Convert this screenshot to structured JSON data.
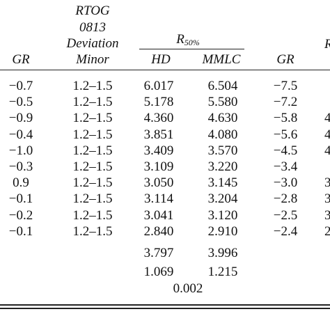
{
  "header": {
    "rtog_line1": "RTOG",
    "rtog_line2": "0813",
    "rtog_line3": "Deviation",
    "rtog_line4": "Minor",
    "gr_left": "GR",
    "r50_main": "R",
    "r50_sub": "50%",
    "hd": "HD",
    "mmlc": "MMLC",
    "gr_right": "GR",
    "right_cut_letter": "R"
  },
  "rows": [
    {
      "gr": "−0.7",
      "dev": "1.2–1.5",
      "hd": "6.017",
      "mmlc": "6.504",
      "gr2": "−7.5",
      "cut": ""
    },
    {
      "gr": "−0.5",
      "dev": "1.2–1.5",
      "hd": "5.178",
      "mmlc": "5.580",
      "gr2": "−7.2",
      "cut": ""
    },
    {
      "gr": "−0.9",
      "dev": "1.2–1.5",
      "hd": "4.360",
      "mmlc": "4.630",
      "gr2": "−5.8",
      "cut": "4"
    },
    {
      "gr": "−0.4",
      "dev": "1.2–1.5",
      "hd": "3.851",
      "mmlc": "4.080",
      "gr2": "−5.6",
      "cut": "4"
    },
    {
      "gr": "−1.0",
      "dev": "1.2–1.5",
      "hd": "3.409",
      "mmlc": "3.570",
      "gr2": "−4.5",
      "cut": "4"
    },
    {
      "gr": "−0.3",
      "dev": "1.2–1.5",
      "hd": "3.109",
      "mmlc": "3.220",
      "gr2": "−3.4",
      "cut": ""
    },
    {
      "gr": "0.9",
      "dev": "1.2–1.5",
      "hd": "3.050",
      "mmlc": "3.145",
      "gr2": "−3.0",
      "cut": "3"
    },
    {
      "gr": "−0.1",
      "dev": "1.2–1.5",
      "hd": "3.114",
      "mmlc": "3.204",
      "gr2": "−2.8",
      "cut": "3"
    },
    {
      "gr": "−0.2",
      "dev": "1.2–1.5",
      "hd": "3.041",
      "mmlc": "3.120",
      "gr2": "−2.5",
      "cut": "3"
    },
    {
      "gr": "−0.1",
      "dev": "1.2–1.5",
      "hd": "2.840",
      "mmlc": "2.910",
      "gr2": "−2.4",
      "cut": "2"
    }
  ],
  "summary": {
    "mean_hd": "3.797",
    "mean_mmlc": "3.996",
    "sd_hd": "1.069",
    "sd_mmlc": "1.215",
    "p_value": "0.002"
  }
}
